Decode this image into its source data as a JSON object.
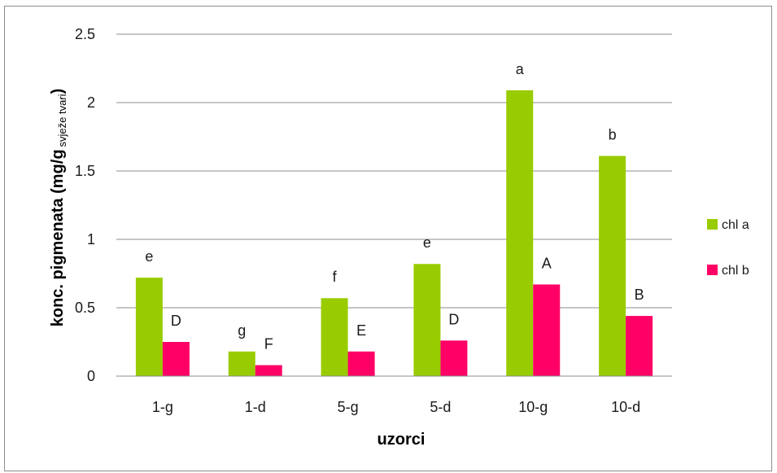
{
  "chart_data": {
    "type": "bar",
    "categories": [
      "1-g",
      "1-d",
      "5-g",
      "5-d",
      "10-g",
      "10-d"
    ],
    "series": [
      {
        "name": "chl a",
        "color": "#99cc00",
        "values": [
          0.72,
          0.18,
          0.57,
          0.82,
          2.09,
          1.61
        ],
        "labels": [
          "e",
          "g",
          "f",
          "e",
          "a",
          "b"
        ]
      },
      {
        "name": "chl b",
        "color": "#ff0066",
        "values": [
          0.25,
          0.08,
          0.18,
          0.26,
          0.67,
          0.44
        ],
        "labels": [
          "D",
          "F",
          "E",
          "D",
          "A",
          "B"
        ]
      }
    ],
    "xlabel": "uzorci",
    "ylabel": "konc. pigmenata (mg/g",
    "ylabel_subscript": "svježe tvari",
    "ylabel_close": ")",
    "ylim": [
      0,
      2.5
    ],
    "yticks": [
      "0",
      "0.5",
      "1",
      "1.5",
      "2",
      "2.5"
    ],
    "grid": true,
    "legend_position": "right"
  }
}
